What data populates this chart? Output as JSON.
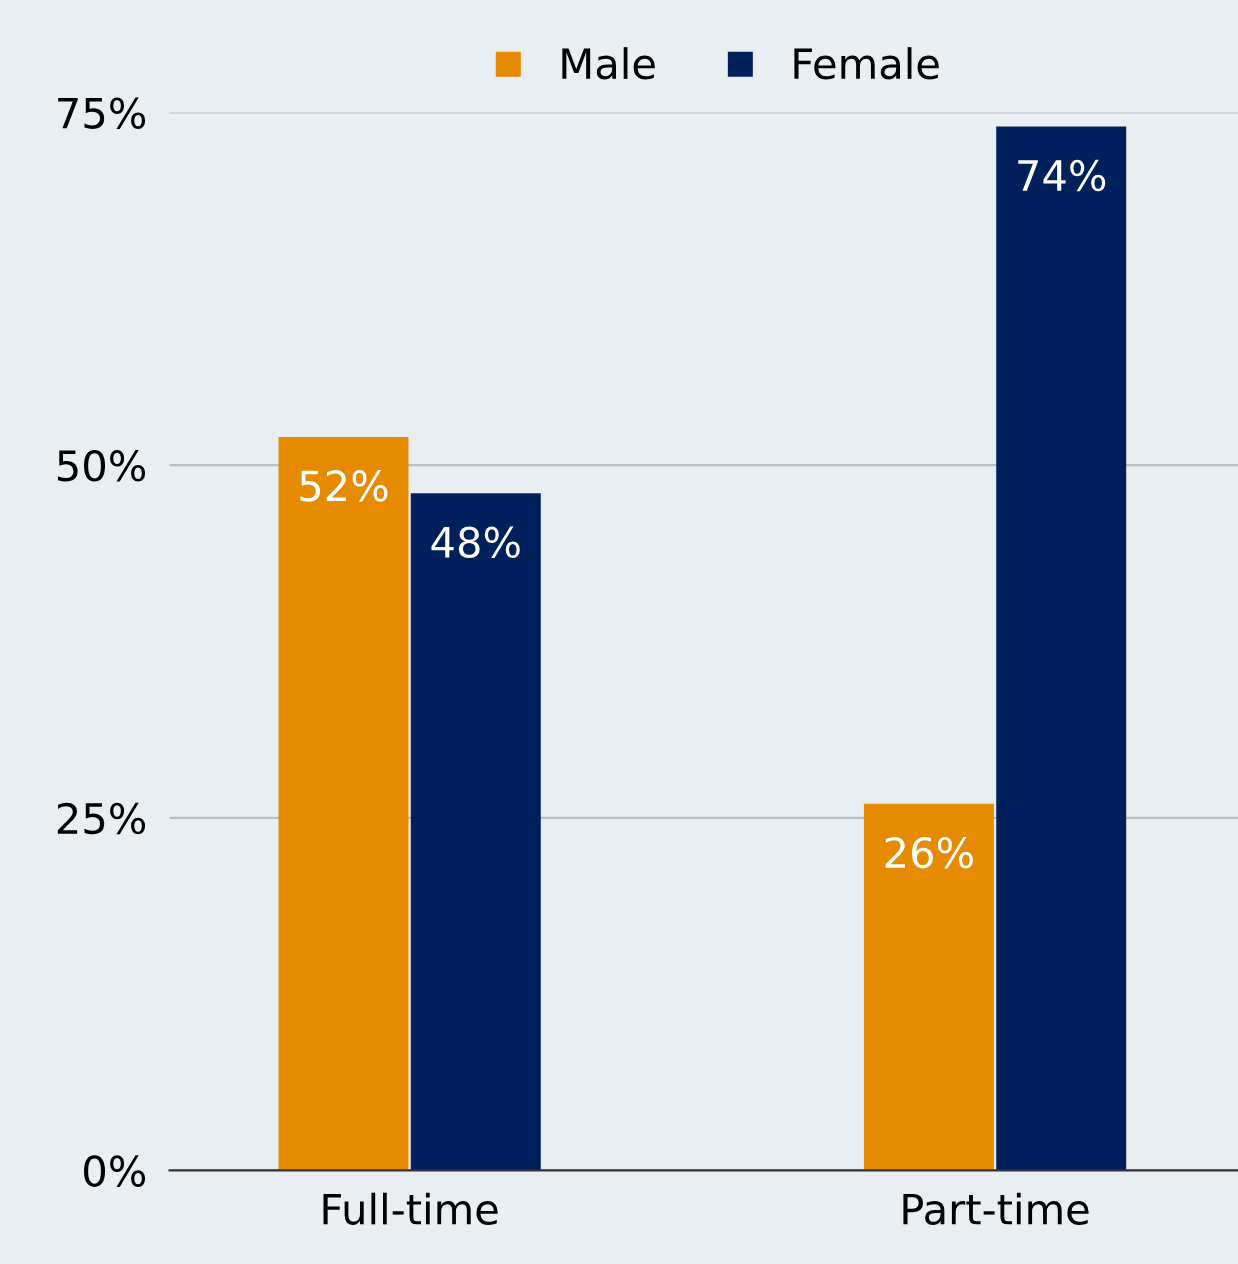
{
  "chart_data": {
    "type": "bar",
    "categories": [
      "Full-time",
      "Part-time"
    ],
    "series": [
      {
        "name": "Male",
        "color": "#e68a00",
        "values": [
          52,
          26
        ],
        "value_labels": [
          "52%",
          "26%"
        ]
      },
      {
        "name": "Female",
        "color": "#00205b",
        "values": [
          48,
          74
        ],
        "value_labels": [
          "48%",
          "74%"
        ]
      }
    ],
    "ylim": [
      0,
      75
    ],
    "yticks": [
      {
        "value": 0,
        "label": "0%"
      },
      {
        "value": 25,
        "label": "25%"
      },
      {
        "value": 50,
        "label": "50%"
      },
      {
        "value": 75,
        "label": "75%"
      }
    ],
    "grid": "y",
    "legend": "top"
  }
}
